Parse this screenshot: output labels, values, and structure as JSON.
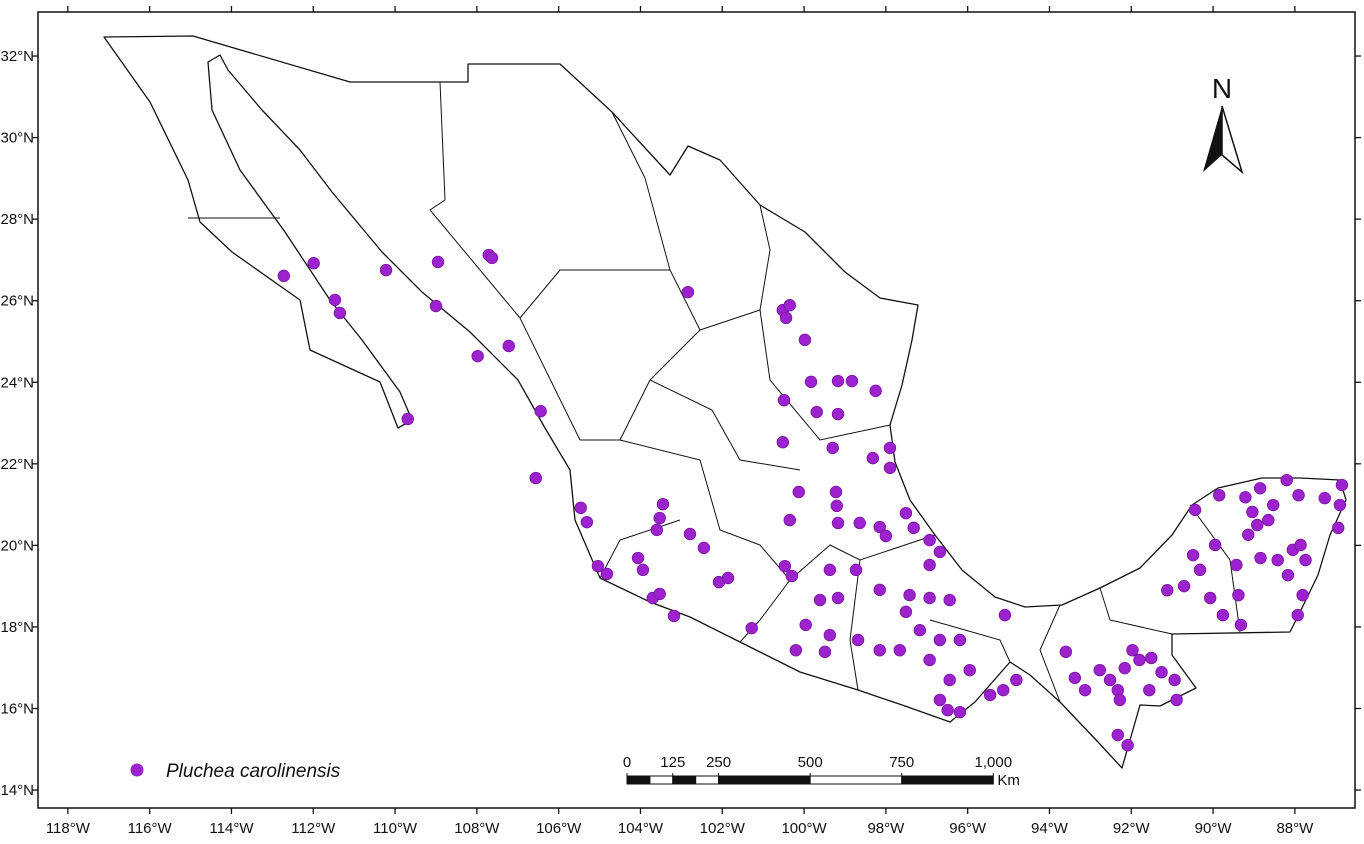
{
  "chart_data": {
    "type": "scatter",
    "xlim": [
      -118.73,
      -86.53
    ],
    "ylim": [
      13.56,
      33.08
    ],
    "xticks": [
      {
        "value": -118,
        "label": "118°W"
      },
      {
        "value": -116,
        "label": "116°W"
      },
      {
        "value": -114,
        "label": "114°W"
      },
      {
        "value": -112,
        "label": "112°W"
      },
      {
        "value": -110,
        "label": "110°W"
      },
      {
        "value": -108,
        "label": "108°W"
      },
      {
        "value": -106,
        "label": "106°W"
      },
      {
        "value": -104,
        "label": "104°W"
      },
      {
        "value": -102,
        "label": "102°W"
      },
      {
        "value": -100,
        "label": "100°W"
      },
      {
        "value": -98,
        "label": "98°W"
      },
      {
        "value": -96,
        "label": "96°W"
      },
      {
        "value": -94,
        "label": "94°W"
      },
      {
        "value": -92,
        "label": "92°W"
      },
      {
        "value": -90,
        "label": "90°W"
      },
      {
        "value": -88,
        "label": "88°W"
      }
    ],
    "yticks": [
      {
        "value": 14,
        "label": "14°N"
      },
      {
        "value": 16,
        "label": "16°N"
      },
      {
        "value": 18,
        "label": "18°N"
      },
      {
        "value": 20,
        "label": "20°N"
      },
      {
        "value": 22,
        "label": "22°N"
      },
      {
        "value": 24,
        "label": "24°N"
      },
      {
        "value": 26,
        "label": "26°N"
      },
      {
        "value": 28,
        "label": "28°N"
      },
      {
        "value": 30,
        "label": "30°N"
      },
      {
        "value": 32,
        "label": "32°N"
      }
    ],
    "series": [
      {
        "name": "Pluchea carolinensis",
        "color": "#9b22cc",
        "x": [
          -112.72,
          -111.99,
          -111.47,
          -111.35,
          -110.22,
          -108.95,
          -109.0,
          -107.71,
          -107.63,
          -107.98,
          -107.22,
          -109.69,
          -106.44,
          -106.56,
          -105.46,
          -105.31,
          -105.04,
          -104.82,
          -104.06,
          -103.94,
          -103.7,
          -103.53,
          -103.18,
          -103.45,
          -103.53,
          -103.6,
          -102.79,
          -102.45,
          -102.08,
          -101.86,
          -101.28,
          -102.84,
          -100.52,
          -100.35,
          -100.44,
          -99.98,
          -99.83,
          -99.17,
          -98.83,
          -98.25,
          -100.49,
          -99.69,
          -99.17,
          -100.52,
          -99.3,
          -97.9,
          -98.32,
          -97.9,
          -100.13,
          -99.22,
          -99.2,
          -100.35,
          -99.17,
          -98.64,
          -98.15,
          -97.51,
          -97.32,
          -96.93,
          -96.68,
          -96.93,
          -98.0,
          -100.47,
          -100.3,
          -99.37,
          -98.73,
          -98.15,
          -97.42,
          -96.93,
          -96.44,
          -99.61,
          -99.17,
          -99.96,
          -99.37,
          -100.2,
          -99.49,
          -98.68,
          -98.15,
          -97.51,
          -97.17,
          -96.68,
          -96.19,
          -97.66,
          -96.93,
          -96.44,
          -95.95,
          -96.68,
          -96.19,
          -96.49,
          -95.45,
          -95.09,
          -95.13,
          -94.81,
          -93.6,
          -93.38,
          -93.13,
          -92.77,
          -92.52,
          -92.33,
          -92.16,
          -92.28,
          -92.33,
          -92.09,
          -91.8,
          -91.56,
          -91.26,
          -90.94,
          -90.89,
          -91.97,
          -91.51,
          -91.12,
          -90.71,
          -90.49,
          -90.32,
          -90.44,
          -89.95,
          -90.07,
          -89.76,
          -89.32,
          -89.38,
          -89.43,
          -89.14,
          -89.04,
          -88.92,
          -89.85,
          -89.21,
          -88.85,
          -88.2,
          -87.91,
          -88.65,
          -88.53,
          -88.84,
          -88.42,
          -88.05,
          -87.86,
          -87.74,
          -87.81,
          -87.93,
          -88.17,
          -87.27,
          -86.9,
          -86.94,
          -86.85
        ],
        "values": [
          26.61,
          26.92,
          26.02,
          25.7,
          26.75,
          26.95,
          25.87,
          27.12,
          27.05,
          24.64,
          24.89,
          23.1,
          23.29,
          21.65,
          20.92,
          20.57,
          19.49,
          19.3,
          19.69,
          19.4,
          18.71,
          18.81,
          18.27,
          21.01,
          20.67,
          20.38,
          20.28,
          19.94,
          19.1,
          19.2,
          17.97,
          26.21,
          25.77,
          25.89,
          25.58,
          25.04,
          24.01,
          24.03,
          24.03,
          23.79,
          23.56,
          23.27,
          23.22,
          22.53,
          22.39,
          22.39,
          22.14,
          21.9,
          21.31,
          21.31,
          20.97,
          20.62,
          20.55,
          20.55,
          20.45,
          20.79,
          20.43,
          20.13,
          19.84,
          19.52,
          20.23,
          19.49,
          19.25,
          19.4,
          19.4,
          18.91,
          18.78,
          18.71,
          18.66,
          18.66,
          18.71,
          18.05,
          17.8,
          17.43,
          17.39,
          17.68,
          17.43,
          18.37,
          17.92,
          17.68,
          17.68,
          17.43,
          17.19,
          16.7,
          16.94,
          16.21,
          15.91,
          15.96,
          16.33,
          18.29,
          16.45,
          16.7,
          17.39,
          16.75,
          16.45,
          16.94,
          16.7,
          16.45,
          16.99,
          16.21,
          15.35,
          15.1,
          17.19,
          16.45,
          16.89,
          16.7,
          16.21,
          17.43,
          17.24,
          18.9,
          19.0,
          19.76,
          19.4,
          20.87,
          20.01,
          18.71,
          18.29,
          18.05,
          18.78,
          19.52,
          20.26,
          20.82,
          20.5,
          21.23,
          21.18,
          21.4,
          21.6,
          21.23,
          20.62,
          20.99,
          19.69,
          19.64,
          19.89,
          20.01,
          19.64,
          18.78,
          18.29,
          19.27,
          21.16,
          20.99,
          20.43,
          21.48
        ]
      }
    ],
    "north_label": "N",
    "scale_bar": {
      "ticks": [
        0,
        125,
        250,
        500,
        750,
        {
          "value": 1000,
          "label": "1,000"
        }
      ],
      "unit": "Km"
    }
  }
}
